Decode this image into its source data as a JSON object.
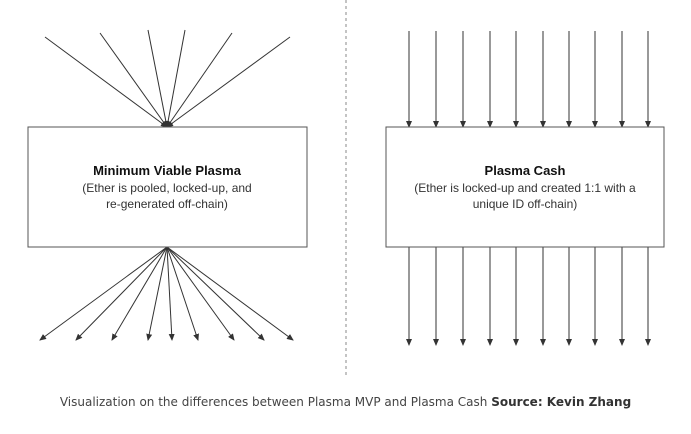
{
  "left_box": {
    "title": "Minimum Viable Plasma",
    "desc_line1": "(Ether is pooled, locked-up, and",
    "desc_line2": "re-generated off-chain)"
  },
  "right_box": {
    "title": "Plasma Cash",
    "desc_line1": "(Ether is locked-up and created 1:1 with a",
    "desc_line2": "unique ID off-chain)"
  },
  "caption": {
    "text": "Visualization on the differences between Plasma MVP and Plasma Cash",
    "source": "Source: Kevin Zhang"
  },
  "colors": {
    "line": "#333333",
    "divider": "#888888"
  }
}
